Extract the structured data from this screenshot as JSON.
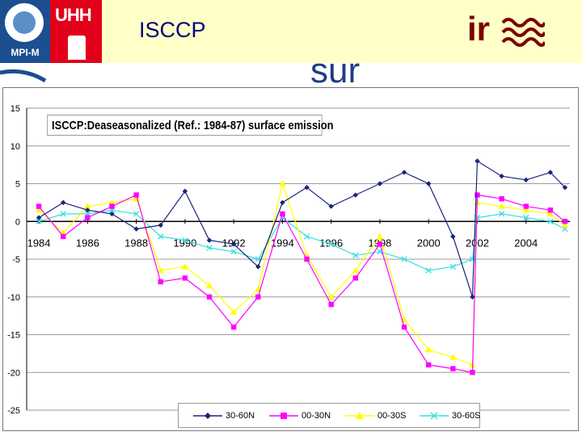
{
  "header": {
    "logo_left_label": "MPI-M",
    "logo_right_label": "UHH",
    "title_left": "ISCCP",
    "title_right": "ir",
    "title_sub": "sur"
  },
  "chart_data": {
    "type": "line",
    "title": "ISCCP:Deaseasonalized (Ref.: 1984-87) surface emission",
    "xlabel": "",
    "ylabel": "",
    "xlim": [
      1983.5,
      2005.8
    ],
    "ylim": [
      -25,
      15
    ],
    "yticks": [
      "15",
      "10",
      "5",
      "0",
      "-5",
      "-10",
      "-15",
      "-20",
      "-25"
    ],
    "xticks": [
      "1984",
      "1986",
      "1988",
      "1990",
      "1992",
      "1994",
      "1996",
      "1998",
      "2000",
      "2002",
      "2004"
    ],
    "grid": true,
    "legend_position": "bottom",
    "series": [
      {
        "name": "30-60N",
        "color": "#1a237e",
        "marker": "diamond",
        "x": [
          1984.0,
          1985.0,
          1986.0,
          1987.0,
          1988.0,
          1989.0,
          1990.0,
          1991.0,
          1992.0,
          1993.0,
          1994.0,
          1995.0,
          1996.0,
          1997.0,
          1998.0,
          1999.0,
          2000.0,
          2001.0,
          2001.8,
          2002.0,
          2003.0,
          2004.0,
          2005.0,
          2005.6
        ],
        "y": [
          0.5,
          2.5,
          1.5,
          1.0,
          -1.0,
          -0.5,
          4.0,
          -2.5,
          -3.0,
          -6.0,
          2.5,
          4.5,
          2.0,
          3.5,
          5.0,
          6.5,
          5.0,
          -2.0,
          -10.0,
          8.0,
          6.0,
          5.5,
          6.5,
          4.5
        ]
      },
      {
        "name": "00-30N",
        "color": "#ff00ff",
        "marker": "square",
        "x": [
          1984.0,
          1985.0,
          1986.0,
          1987.0,
          1988.0,
          1989.0,
          1990.0,
          1991.0,
          1992.0,
          1993.0,
          1994.0,
          1995.0,
          1996.0,
          1997.0,
          1998.0,
          1999.0,
          2000.0,
          2001.0,
          2001.8,
          2002.0,
          2003.0,
          2004.0,
          2005.0,
          2005.6
        ],
        "y": [
          2.0,
          -2.0,
          0.5,
          2.0,
          3.5,
          -8.0,
          -7.5,
          -10.0,
          -14.0,
          -10.0,
          1.0,
          -5.0,
          -11.0,
          -7.5,
          -3.0,
          -14.0,
          -19.0,
          -19.5,
          -20.0,
          3.5,
          3.0,
          2.0,
          1.5,
          0.0
        ]
      },
      {
        "name": "00-30S",
        "color": "#ffff00",
        "marker": "triangle",
        "x": [
          1984.0,
          1985.0,
          1986.0,
          1987.0,
          1988.0,
          1989.0,
          1990.0,
          1991.0,
          1992.0,
          1993.0,
          1994.0,
          1995.0,
          1996.0,
          1997.0,
          1998.0,
          1999.0,
          2000.0,
          2001.0,
          2001.8,
          2002.0,
          2003.0,
          2004.0,
          2005.0,
          2005.6
        ],
        "y": [
          1.5,
          -1.5,
          2.0,
          2.5,
          3.0,
          -6.5,
          -6.0,
          -8.5,
          -12.0,
          -9.0,
          5.0,
          -4.5,
          -10.0,
          -6.5,
          -2.0,
          -13.0,
          -17.0,
          -18.0,
          -19.0,
          2.5,
          2.0,
          1.5,
          1.0,
          -0.5
        ]
      },
      {
        "name": "30-60S",
        "color": "#33e0e0",
        "marker": "x",
        "x": [
          1984.0,
          1985.0,
          1986.0,
          1987.0,
          1988.0,
          1989.0,
          1990.0,
          1991.0,
          1992.0,
          1993.0,
          1994.0,
          1995.0,
          1996.0,
          1997.0,
          1998.0,
          1999.0,
          2000.0,
          2001.0,
          2001.8,
          2002.0,
          2003.0,
          2004.0,
          2005.0,
          2005.6
        ],
        "y": [
          0.0,
          1.0,
          1.0,
          1.5,
          1.0,
          -2.0,
          -2.5,
          -3.5,
          -4.0,
          -5.0,
          0.5,
          -2.0,
          -3.0,
          -4.5,
          -4.0,
          -5.0,
          -6.5,
          -6.0,
          -5.0,
          0.5,
          1.0,
          0.5,
          0.0,
          -1.0
        ]
      }
    ]
  }
}
